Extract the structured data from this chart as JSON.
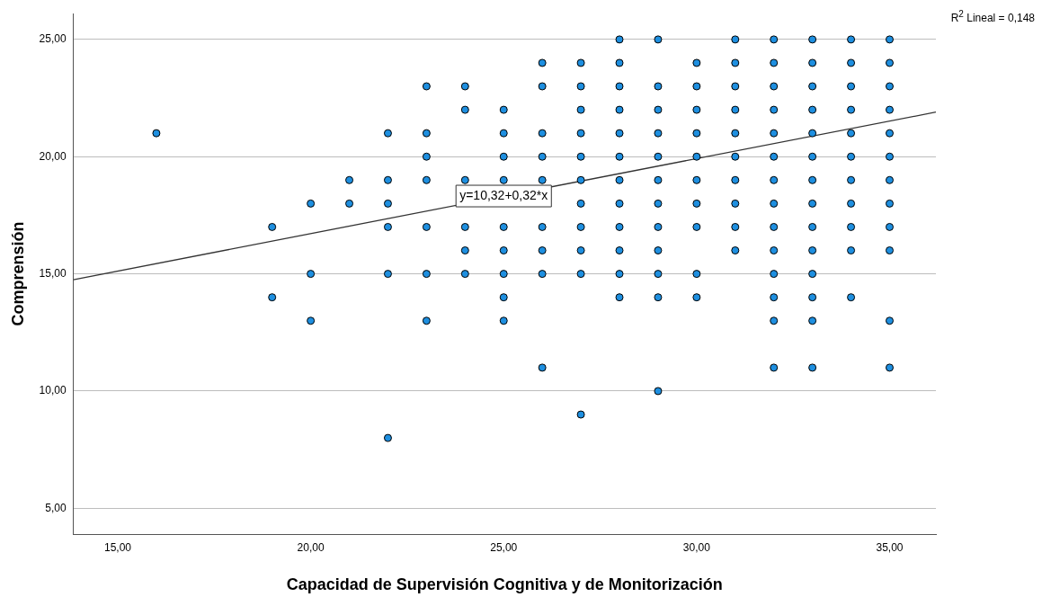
{
  "chart_data": {
    "type": "scatter",
    "xlabel": "Capacidad de Supervisión Cognitiva y de Monitorización",
    "ylabel": "Comprensión",
    "xlim": [
      13.85,
      36.2
    ],
    "ylim": [
      3.9,
      26.1
    ],
    "xticks": [
      {
        "value": 15,
        "label": "15,00"
      },
      {
        "value": 20,
        "label": "20,00"
      },
      {
        "value": 25,
        "label": "25,00"
      },
      {
        "value": 30,
        "label": "30,00"
      },
      {
        "value": 35,
        "label": "35,00"
      }
    ],
    "yticks": [
      {
        "value": 5,
        "label": "5,00"
      },
      {
        "value": 10,
        "label": "10,00"
      },
      {
        "value": 15,
        "label": "15,00"
      },
      {
        "value": 20,
        "label": "20,00"
      },
      {
        "value": 25,
        "label": "25,00"
      }
    ],
    "grid": "y",
    "legend": false,
    "annotations": [
      {
        "text": "y=10,32+0,32*x",
        "x": 25,
        "y": 18.32
      },
      "R$^{2}$ Lineal = 0,148"
    ],
    "series": [
      {
        "marker": "circle",
        "color": "#1e8fe0",
        "x": [
          16,
          19,
          19,
          20,
          20,
          20,
          21,
          21,
          22,
          22,
          22,
          22,
          22,
          22,
          23,
          23,
          23,
          23,
          23,
          23,
          23,
          24,
          24,
          24,
          24,
          24,
          24,
          25,
          25,
          25,
          25,
          25,
          25,
          25,
          25,
          25,
          26,
          26,
          26,
          26,
          26,
          26,
          26,
          26,
          26,
          27,
          27,
          27,
          27,
          27,
          27,
          27,
          27,
          27,
          27,
          27,
          28,
          28,
          28,
          28,
          28,
          28,
          28,
          28,
          28,
          28,
          28,
          28,
          29,
          29,
          29,
          29,
          29,
          29,
          29,
          29,
          29,
          29,
          29,
          29,
          30,
          30,
          30,
          30,
          30,
          30,
          30,
          30,
          30,
          30,
          31,
          31,
          31,
          31,
          31,
          31,
          31,
          31,
          31,
          31,
          32,
          32,
          32,
          32,
          32,
          32,
          32,
          32,
          32,
          32,
          32,
          32,
          32,
          32,
          33,
          33,
          33,
          33,
          33,
          33,
          33,
          33,
          33,
          33,
          33,
          33,
          33,
          33,
          34,
          34,
          34,
          34,
          34,
          34,
          34,
          34,
          34,
          34,
          34,
          35,
          35,
          35,
          35,
          35,
          35,
          35,
          35,
          35,
          35,
          35,
          35
        ],
        "values": [
          21,
          17,
          14,
          18,
          15,
          13,
          19,
          18,
          21,
          19,
          18,
          17,
          15,
          8,
          23,
          21,
          20,
          19,
          17,
          15,
          13,
          23,
          22,
          19,
          17,
          16,
          15,
          22,
          21,
          20,
          19,
          17,
          16,
          15,
          14,
          13,
          24,
          23,
          21,
          20,
          19,
          17,
          16,
          15,
          11,
          24,
          23,
          22,
          21,
          20,
          19,
          18,
          17,
          16,
          15,
          9,
          25,
          24,
          23,
          22,
          21,
          20,
          19,
          18,
          17,
          16,
          15,
          14,
          25,
          23,
          22,
          21,
          20,
          19,
          18,
          17,
          16,
          15,
          14,
          10,
          24,
          23,
          22,
          21,
          20,
          19,
          18,
          17,
          15,
          14,
          25,
          24,
          23,
          22,
          21,
          20,
          19,
          18,
          17,
          16,
          25,
          24,
          23,
          22,
          21,
          20,
          19,
          18,
          17,
          16,
          15,
          14,
          13,
          11,
          25,
          24,
          23,
          22,
          21,
          20,
          19,
          18,
          17,
          16,
          15,
          14,
          13,
          11,
          25,
          24,
          23,
          22,
          21,
          20,
          19,
          18,
          17,
          16,
          14,
          25,
          24,
          23,
          22,
          21,
          20,
          19,
          18,
          17,
          16,
          13,
          11
        ]
      },
      {
        "type": "line",
        "marker": "none",
        "color": "#333333",
        "x": [
          13.85,
          36.2
        ],
        "values": [
          14.75,
          21.9
        ]
      }
    ]
  }
}
